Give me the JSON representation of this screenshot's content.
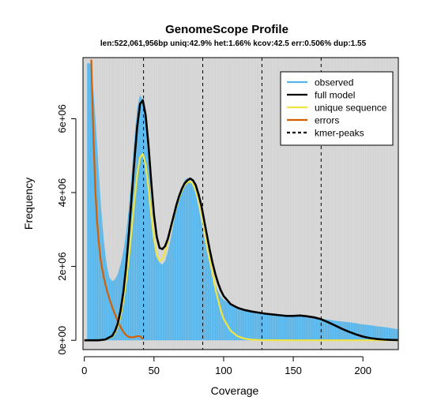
{
  "chart_data": {
    "type": "area",
    "title": "GenomeScope Profile",
    "subtitle": "len:522,061,956bp uniq:42.9% het:1.66% kcov:42.5 err:0.506% dup:1.55",
    "xlabel": "Coverage",
    "ylabel": "Frequency",
    "xlim": [
      0,
      225
    ],
    "ylim": [
      0,
      7500000
    ],
    "x_ticks": [
      0,
      50,
      100,
      150,
      200
    ],
    "y_ticks": [
      0,
      2000000,
      4000000,
      6000000
    ],
    "x_tick_labels": [
      "0",
      "50",
      "100",
      "150",
      "200"
    ],
    "y_tick_labels": [
      "0e+00",
      "2e+06",
      "4e+06",
      "6e+06"
    ],
    "legend_position": "top-right",
    "colors": {
      "panel_background": "#d3d3d3",
      "observed": "#56b4e9",
      "full_model": "#000000",
      "unique_sequence": "#f0e442",
      "errors": "#d55e00",
      "kmer_peaks": "#000000"
    },
    "kmer_peaks": [
      42.5,
      85,
      127.5,
      170
    ],
    "series": [
      {
        "name": "observed",
        "style": "histogram",
        "x": [
          2,
          5,
          8,
          10,
          12,
          14,
          16,
          18,
          20,
          22,
          24,
          26,
          28,
          30,
          32,
          34,
          36,
          38,
          40,
          42,
          44,
          46,
          48,
          50,
          52,
          54,
          56,
          58,
          60,
          62,
          64,
          66,
          68,
          70,
          72,
          74,
          76,
          78,
          80,
          82,
          84,
          86,
          88,
          90,
          92,
          94,
          96,
          98,
          100,
          105,
          110,
          115,
          120,
          125,
          130,
          135,
          140,
          145,
          150,
          155,
          160,
          165,
          170,
          175,
          180,
          185,
          190,
          195,
          200,
          205,
          210,
          215,
          220,
          225
        ],
        "y": [
          7500000,
          7500000,
          6000000,
          4800000,
          3600000,
          2700000,
          2050000,
          1700000,
          1600000,
          1650000,
          1800000,
          2050000,
          2400000,
          2900000,
          3600000,
          4500000,
          5500000,
          6300000,
          6650000,
          6500000,
          5900000,
          4850000,
          3750000,
          2850000,
          2350000,
          2100000,
          2050000,
          2150000,
          2400000,
          2750000,
          3150000,
          3550000,
          3900000,
          4150000,
          4330000,
          4400000,
          4350000,
          4200000,
          3950000,
          3600000,
          3200000,
          2800000,
          2400000,
          2050000,
          1750000,
          1500000,
          1320000,
          1180000,
          1100000,
          970000,
          880000,
          820000,
          780000,
          750000,
          720000,
          700000,
          690000,
          680000,
          680000,
          670000,
          660000,
          630000,
          590000,
          560000,
          530000,
          510000,
          490000,
          460000,
          430000,
          410000,
          380000,
          360000,
          330000,
          300000
        ]
      },
      {
        "name": "full model",
        "style": "line",
        "x": [
          0,
          10,
          15,
          20,
          22,
          24,
          26,
          28,
          30,
          32,
          34,
          36,
          38,
          40,
          42,
          44,
          46,
          48,
          50,
          52,
          54,
          56,
          58,
          60,
          62,
          64,
          66,
          68,
          70,
          72,
          74,
          76,
          78,
          80,
          82,
          84,
          86,
          88,
          90,
          92,
          94,
          96,
          98,
          100,
          105,
          110,
          115,
          120,
          125,
          130,
          135,
          140,
          145,
          150,
          155,
          160,
          165,
          170,
          175,
          180,
          185,
          190,
          195,
          200,
          205,
          210,
          215,
          220,
          225
        ],
        "y": [
          0,
          0,
          20000,
          120000,
          250000,
          450000,
          800000,
          1300000,
          2000000,
          2900000,
          3900000,
          4900000,
          5800000,
          6400000,
          6500000,
          6100000,
          5300000,
          4300000,
          3400000,
          2800000,
          2500000,
          2470000,
          2550000,
          2750000,
          3050000,
          3350000,
          3650000,
          3900000,
          4100000,
          4250000,
          4330000,
          4380000,
          4330000,
          4200000,
          3950000,
          3650000,
          3250000,
          2850000,
          2450000,
          2100000,
          1800000,
          1550000,
          1350000,
          1200000,
          980000,
          880000,
          820000,
          780000,
          750000,
          720000,
          700000,
          680000,
          660000,
          660000,
          670000,
          650000,
          620000,
          570000,
          490000,
          400000,
          310000,
          230000,
          160000,
          100000,
          60000,
          35000,
          20000,
          10000,
          5000
        ]
      },
      {
        "name": "unique sequence",
        "style": "line",
        "x": [
          0,
          10,
          15,
          20,
          22,
          24,
          26,
          28,
          30,
          32,
          34,
          36,
          38,
          40,
          42,
          44,
          46,
          48,
          50,
          52,
          54,
          56,
          58,
          60,
          62,
          64,
          66,
          68,
          70,
          72,
          74,
          76,
          78,
          80,
          82,
          84,
          86,
          88,
          90,
          92,
          94,
          96,
          98,
          100,
          105,
          110,
          115,
          120,
          125,
          130,
          140,
          150,
          160,
          170,
          180,
          200,
          225
        ],
        "y": [
          0,
          0,
          15000,
          100000,
          200000,
          370000,
          650000,
          1050000,
          1600000,
          2250000,
          3000000,
          3800000,
          4500000,
          4950000,
          5050000,
          4750000,
          4150000,
          3400000,
          2750000,
          2300000,
          2150000,
          2200000,
          2400000,
          2700000,
          3000000,
          3300000,
          3600000,
          3850000,
          4050000,
          4200000,
          4280000,
          4300000,
          4230000,
          4050000,
          3800000,
          3450000,
          3050000,
          2600000,
          2200000,
          1800000,
          1400000,
          1100000,
          800000,
          580000,
          260000,
          110000,
          45000,
          18000,
          8000,
          3000,
          1000,
          0,
          0,
          0,
          0,
          0,
          0
        ]
      },
      {
        "name": "errors",
        "style": "line",
        "x": [
          5,
          6,
          7,
          8,
          9,
          10,
          11,
          12,
          14,
          16,
          18,
          20,
          22,
          24,
          26,
          28,
          30,
          32,
          34,
          36,
          38,
          40,
          42
        ],
        "y": [
          7600000,
          6200000,
          5000000,
          4000000,
          3300000,
          2800000,
          2400000,
          2100000,
          1700000,
          1380000,
          1120000,
          900000,
          700000,
          520000,
          360000,
          230000,
          140000,
          90000,
          80000,
          90000,
          110000,
          110000,
          30000
        ]
      }
    ]
  }
}
